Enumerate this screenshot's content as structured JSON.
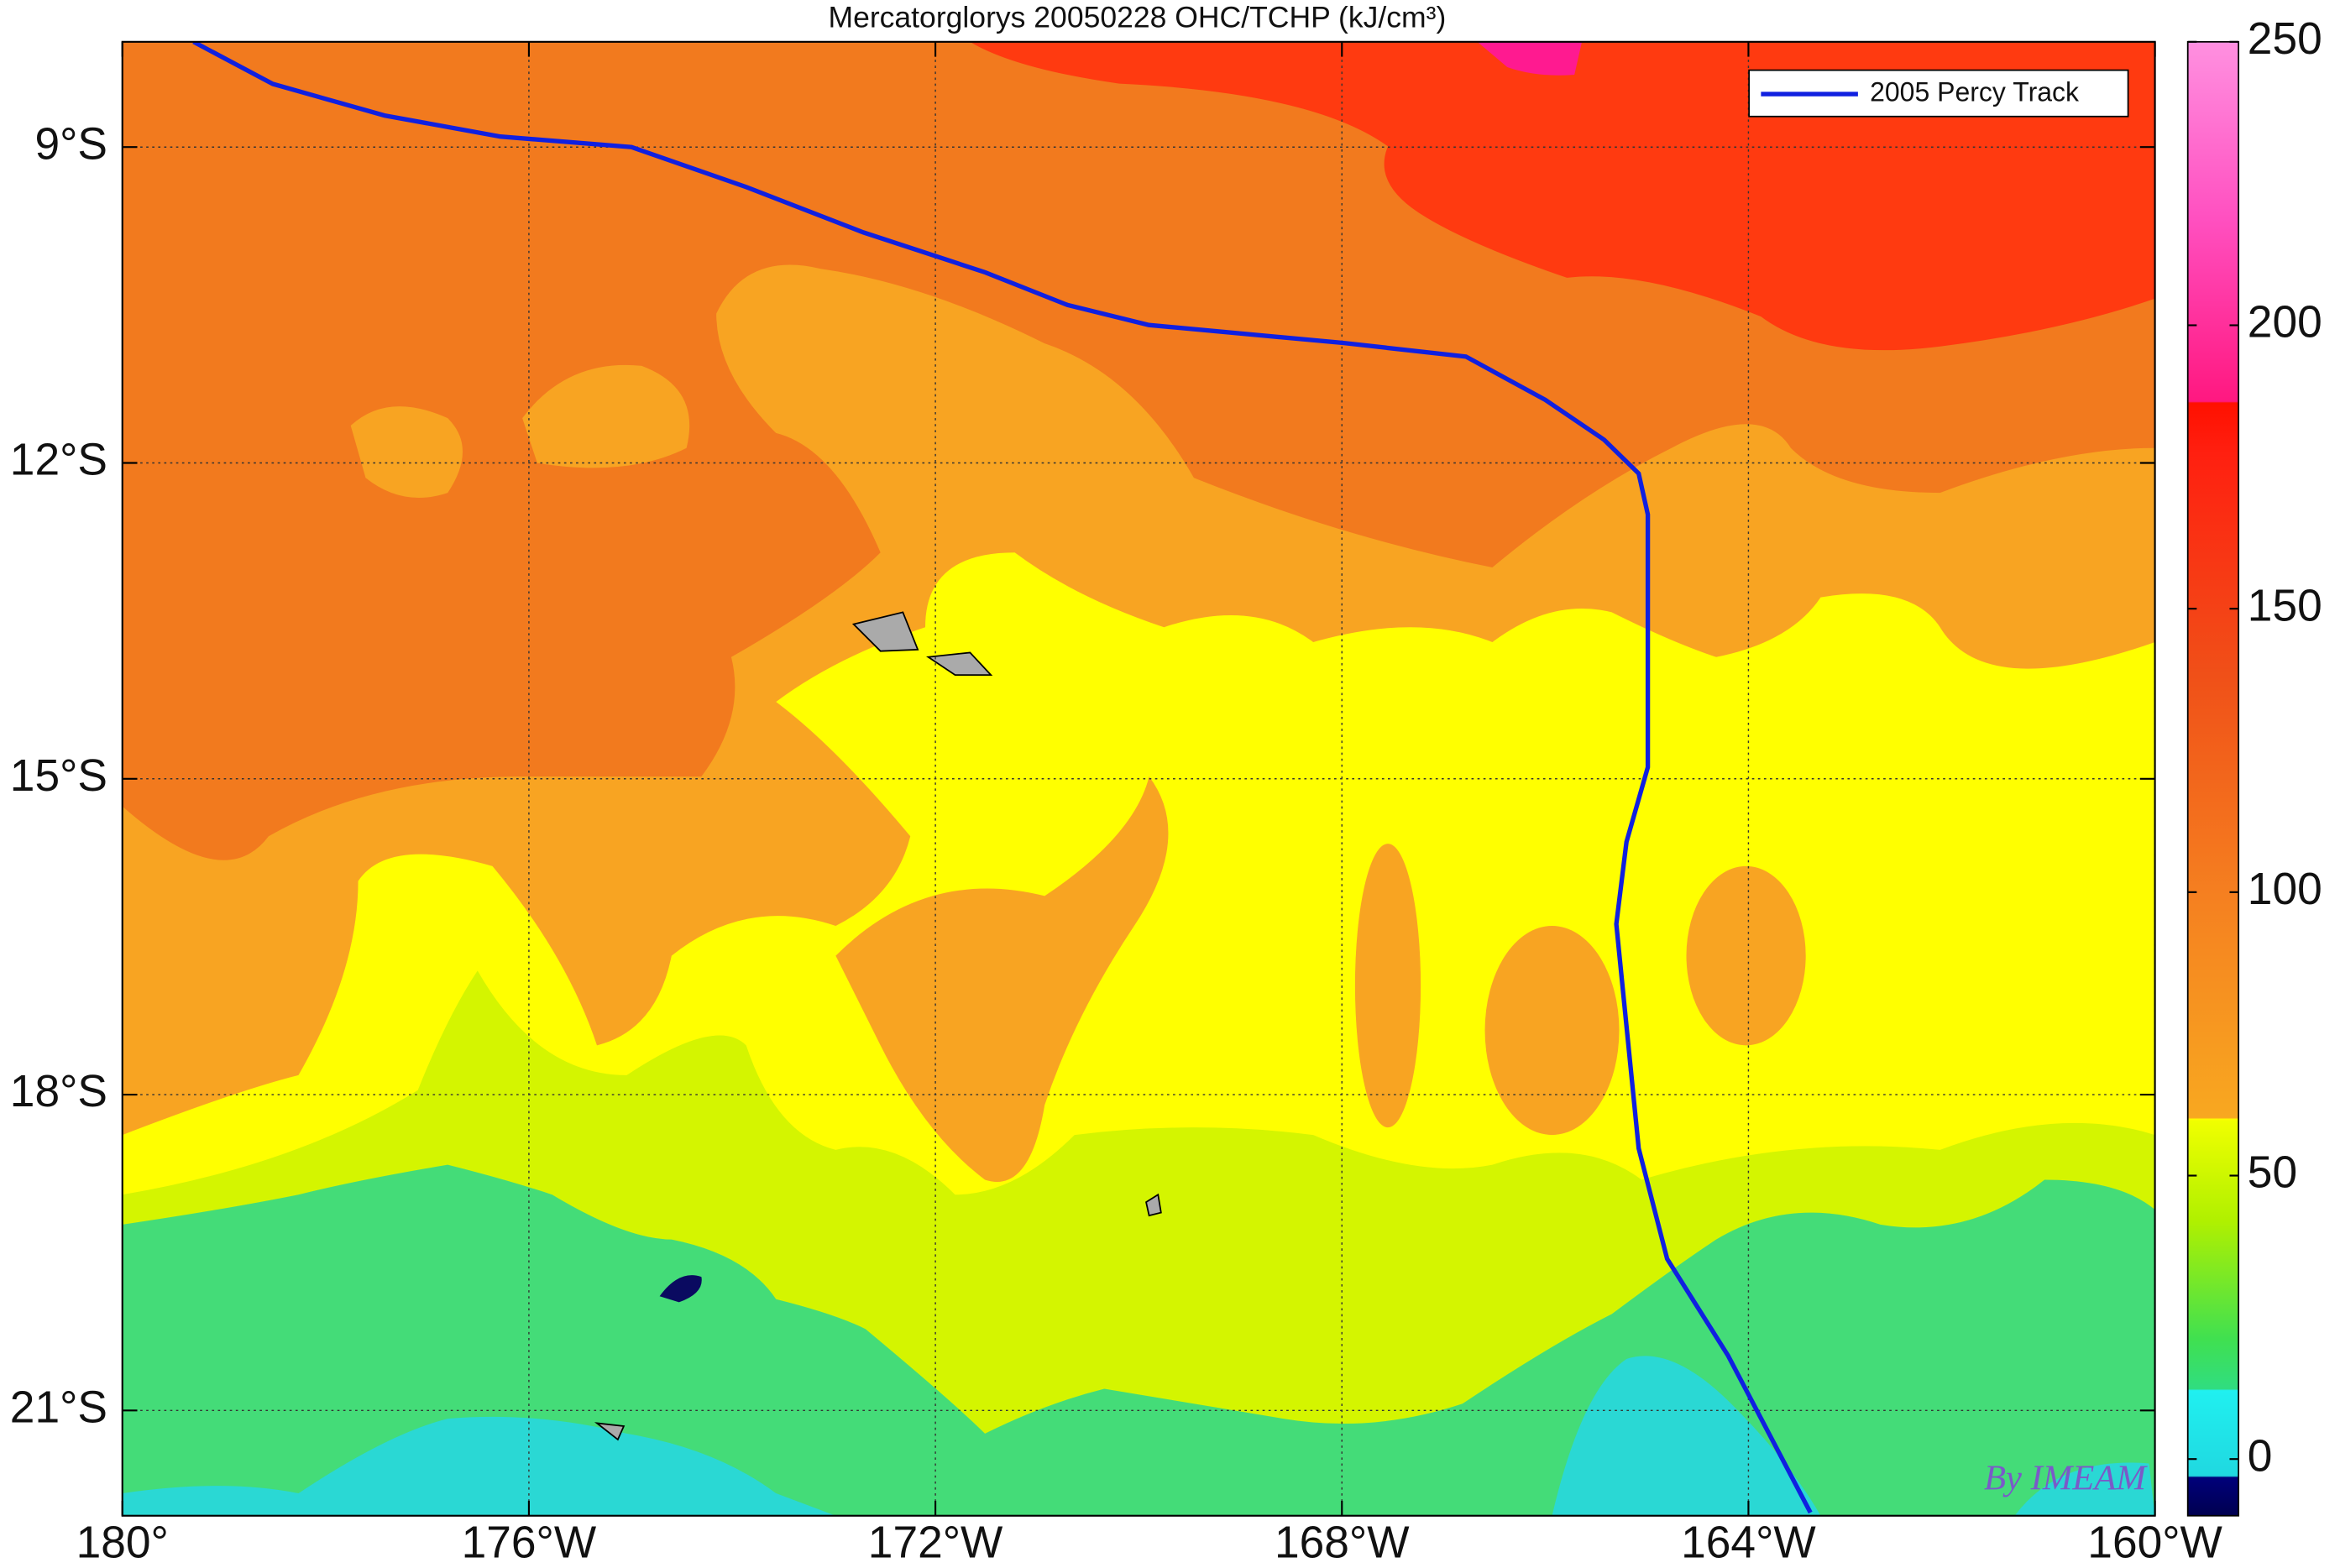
{
  "chart_data": {
    "type": "map",
    "title": "Mercatorglorys 20050228 OHC/TCHP (kJ/cm³)",
    "xlim": [
      -180,
      -160
    ],
    "ylim": [
      -22,
      -8
    ],
    "xticks": [
      {
        "value": -180,
        "label": "180°"
      },
      {
        "value": -176,
        "label": "176°W"
      },
      {
        "value": -172,
        "label": "172°W"
      },
      {
        "value": -168,
        "label": "168°W"
      },
      {
        "value": -164,
        "label": "164°W"
      },
      {
        "value": -160,
        "label": "160°W"
      }
    ],
    "yticks": [
      {
        "value": -9,
        "label": "9°S"
      },
      {
        "value": -12,
        "label": "12°S"
      },
      {
        "value": -15,
        "label": "15°S"
      },
      {
        "value": -18,
        "label": "18°S"
      },
      {
        "value": -21,
        "label": "21°S"
      }
    ],
    "grid": true,
    "legend": "upper right",
    "series": [
      {
        "name": "2005 Percy Track",
        "color": "#1020e0",
        "x": [
          -179.3,
          -178.52,
          -177.42,
          -176.28,
          -174.99,
          -173.86,
          -172.71,
          -171.51,
          -170.7,
          -169.9,
          -167.99,
          -166.78,
          -166.0,
          -165.42,
          -165.08,
          -164.99,
          -164.99,
          -165.2,
          -165.3,
          -165.08,
          -164.8,
          -164.2,
          -163.39
        ],
        "values": [
          -8.0,
          -8.4,
          -8.7,
          -8.9,
          -9.0,
          -9.38,
          -9.81,
          -10.19,
          -10.5,
          -10.69,
          -10.86,
          -10.99,
          -11.4,
          -11.78,
          -12.1,
          -12.49,
          -14.89,
          -15.6,
          -16.38,
          -18.51,
          -19.56,
          -20.48,
          -21.97
        ]
      }
    ],
    "colorbar": {
      "clim": [
        -10,
        250
      ],
      "ticks": [
        0,
        50,
        100,
        150,
        200,
        250
      ]
    },
    "watermark": "By IMEAM"
  }
}
